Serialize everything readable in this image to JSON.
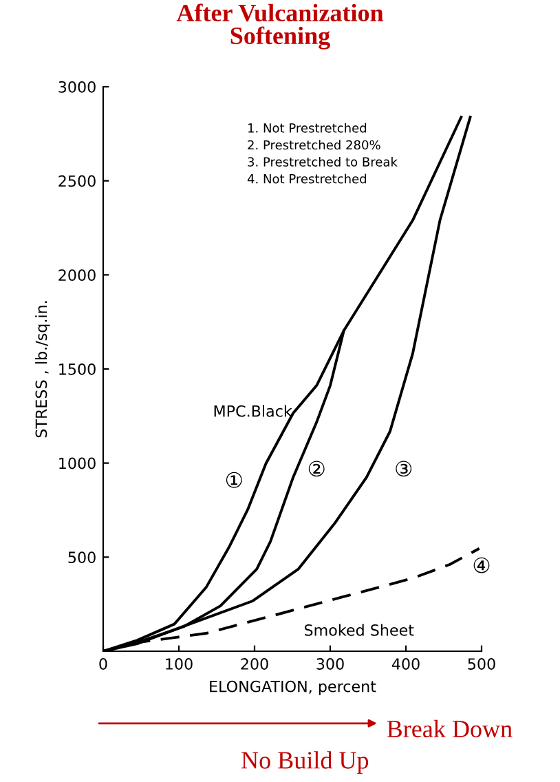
{
  "chart_data": {
    "type": "line",
    "title": "After Vulcanization\nSoftening",
    "xlabel": "ELONGATION, percent",
    "ylabel": "STRESS , lb./sq.in.",
    "xlim": [
      0,
      500
    ],
    "ylim": [
      0,
      3000
    ],
    "xticks": [
      0,
      100,
      200,
      300,
      400,
      500
    ],
    "yticks": [
      500,
      1000,
      1500,
      2000,
      2500,
      3000
    ],
    "grid": false,
    "legend": false,
    "marker": "none",
    "series": [
      {
        "name": "①",
        "color": "#000000",
        "line_style": "solid",
        "x": [
          0,
          45,
          94,
          136,
          167,
          191,
          215,
          251,
          282,
          318,
          409,
          473
        ],
        "values": [
          0,
          58,
          144,
          339,
          558,
          753,
          997,
          1265,
          1412,
          1704,
          2290,
          2838
        ]
      },
      {
        "name": "②",
        "color": "#000000",
        "line_style": "solid",
        "x": [
          0,
          45,
          106,
          155,
          203,
          221,
          251,
          282,
          300,
          318
        ],
        "values": [
          0,
          46,
          130,
          241,
          437,
          583,
          924,
          1217,
          1412,
          1704
        ]
      },
      {
        "name": "③",
        "color": "#000000",
        "line_style": "solid",
        "x": [
          0,
          45,
          106,
          197,
          258,
          306,
          348,
          379,
          409,
          445,
          485
        ],
        "values": [
          0,
          40,
          132,
          266,
          437,
          680,
          924,
          1168,
          1582,
          2290,
          2838
        ]
      },
      {
        "name": "④",
        "color": "#000000",
        "line_style": "dashed",
        "x": [
          0,
          45,
          136,
          227,
          318,
          409,
          458,
          497
        ],
        "values": [
          0,
          46,
          95,
          192,
          290,
          388,
          461,
          546
        ]
      }
    ],
    "annotations": [
      "MPC.Black",
      "Smoked Sheet",
      "1. Not Prestretched",
      "2. Prestretched 280%",
      "3. Prestretched to Break",
      "4. Not Prestretched",
      "Break Down",
      "No Build Up"
    ]
  }
}
